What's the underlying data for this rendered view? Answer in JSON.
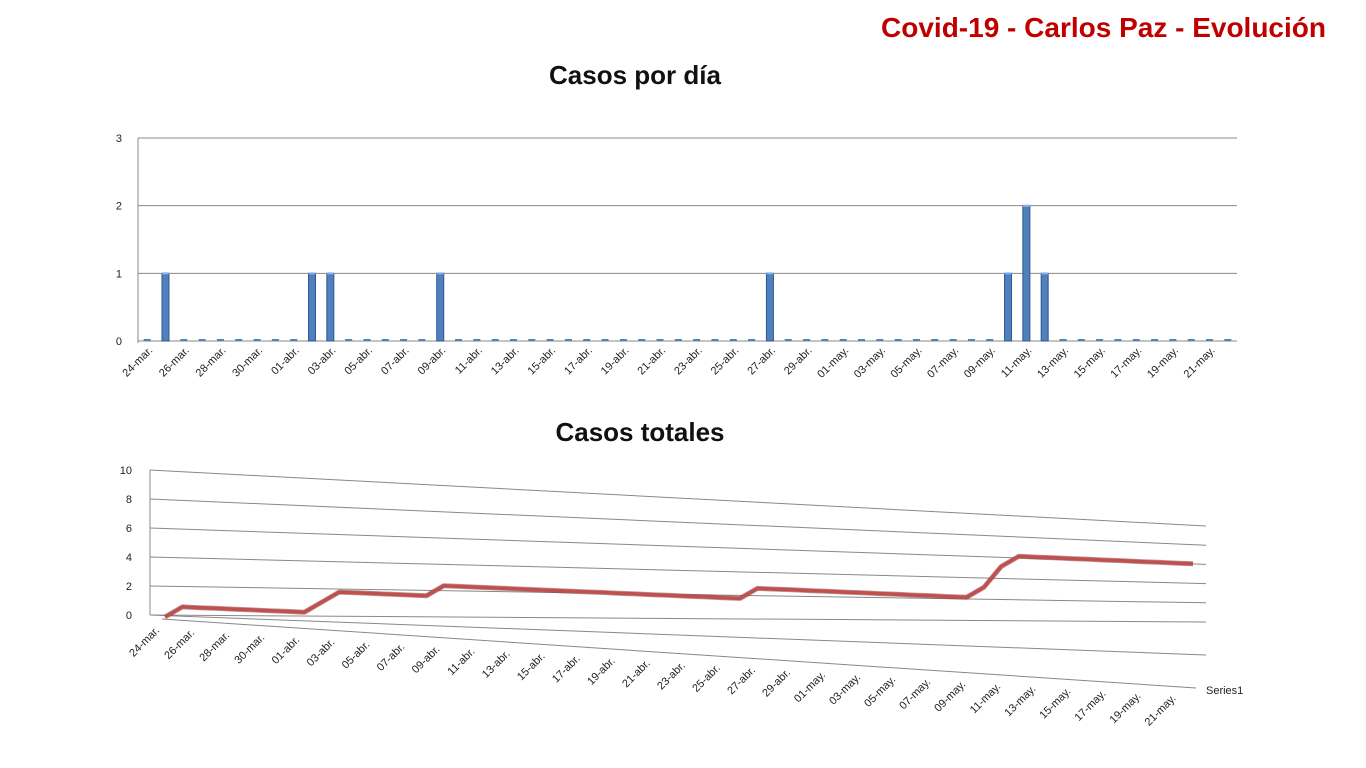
{
  "header": {
    "title": "Covid-19 - Carlos Paz - Evolución"
  },
  "colors": {
    "title": "#c00000",
    "bar": "#4f81bd",
    "bar_dark": "#2f5597",
    "line": "#c0504d",
    "grid": "#888888"
  },
  "chart_data": [
    {
      "type": "bar",
      "title": "Casos por día",
      "xlabel": "",
      "ylabel": "",
      "ylim": [
        0,
        3
      ],
      "yticks": [
        0,
        1,
        2,
        3
      ],
      "grid": true,
      "start": "24-mar.",
      "x_tick_labels": [
        "24-mar.",
        "26-mar.",
        "28-mar.",
        "30-mar.",
        "01-abr.",
        "03-abr.",
        "05-abr.",
        "07-abr.",
        "09-abr.",
        "11-abr.",
        "13-abr.",
        "15-abr.",
        "17-abr.",
        "19-abr.",
        "21-abr.",
        "23-abr.",
        "25-abr.",
        "27-abr.",
        "29-abr.",
        "01-may.",
        "03-may.",
        "05-may.",
        "07-may.",
        "09-may.",
        "11-may.",
        "13-may.",
        "15-may.",
        "17-may.",
        "19-may.",
        "21-may."
      ],
      "values": [
        0,
        1,
        0,
        0,
        0,
        0,
        0,
        0,
        0,
        1,
        1,
        0,
        0,
        0,
        0,
        0,
        1,
        0,
        0,
        0,
        0,
        0,
        0,
        0,
        0,
        0,
        0,
        0,
        0,
        0,
        0,
        0,
        0,
        0,
        1,
        0,
        0,
        0,
        0,
        0,
        0,
        0,
        0,
        0,
        0,
        0,
        0,
        1,
        2,
        1,
        0,
        0,
        0,
        0,
        0,
        0,
        0,
        0,
        0,
        0
      ]
    },
    {
      "type": "line",
      "title": "Casos totales",
      "xlabel": "",
      "ylabel": "",
      "ylim": [
        0,
        10
      ],
      "yticks": [
        0,
        2,
        4,
        6,
        8,
        10
      ],
      "grid": true,
      "legend": "Series1",
      "x_tick_labels": [
        "24-mar.",
        "26-mar.",
        "28-mar.",
        "30-mar.",
        "01-abr.",
        "03-abr.",
        "05-abr.",
        "07-abr.",
        "09-abr.",
        "11-abr.",
        "13-abr.",
        "15-abr.",
        "17-abr.",
        "19-abr.",
        "21-abr.",
        "23-abr.",
        "25-abr.",
        "27-abr.",
        "29-abr.",
        "01-may.",
        "03-may.",
        "05-may.",
        "07-may.",
        "09-may.",
        "11-may.",
        "13-may.",
        "15-may.",
        "17-may.",
        "19-may.",
        "21-may."
      ],
      "series": [
        {
          "name": "Series1",
          "values": [
            0,
            1,
            1,
            1,
            1,
            1,
            1,
            1,
            1,
            2,
            3,
            3,
            3,
            3,
            3,
            3,
            4,
            4,
            4,
            4,
            4,
            4,
            4,
            4,
            4,
            4,
            4,
            4,
            4,
            4,
            4,
            4,
            4,
            4,
            5,
            5,
            5,
            5,
            5,
            5,
            5,
            5,
            5,
            5,
            5,
            5,
            5,
            6,
            8,
            9,
            9,
            9,
            9,
            9,
            9,
            9,
            9,
            9,
            9,
            9
          ]
        }
      ]
    }
  ]
}
